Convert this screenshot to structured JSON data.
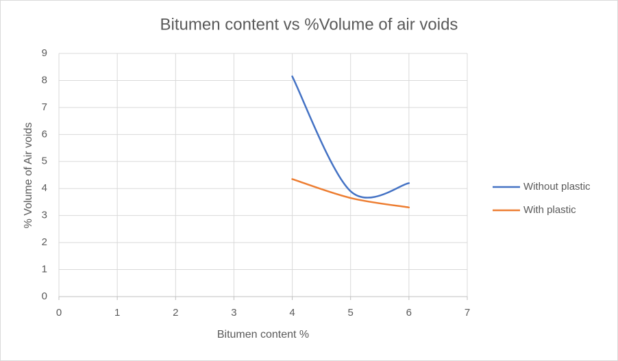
{
  "chart_data": {
    "type": "line",
    "smooth": true,
    "title": "Bitumen content vs %Volume of air voids",
    "x_label": "Bitumen content %",
    "y_label": "% Volume of Air voids",
    "xlim": [
      0,
      7
    ],
    "xticks": [
      0,
      1,
      2,
      3,
      4,
      5,
      6,
      7
    ],
    "ylim": [
      0,
      9
    ],
    "yticks": [
      0,
      1,
      2,
      3,
      4,
      5,
      6,
      7,
      8,
      9
    ],
    "grid": true,
    "legend": "right",
    "series": [
      {
        "name": "Without plastic",
        "color": "#4472c4",
        "x": [
          4,
          5,
          6
        ],
        "values": [
          8.15,
          3.9,
          4.2
        ]
      },
      {
        "name": "With plastic",
        "color": "#ed7d31",
        "x": [
          4,
          5,
          6
        ],
        "values": [
          4.35,
          3.65,
          3.3
        ]
      }
    ]
  }
}
